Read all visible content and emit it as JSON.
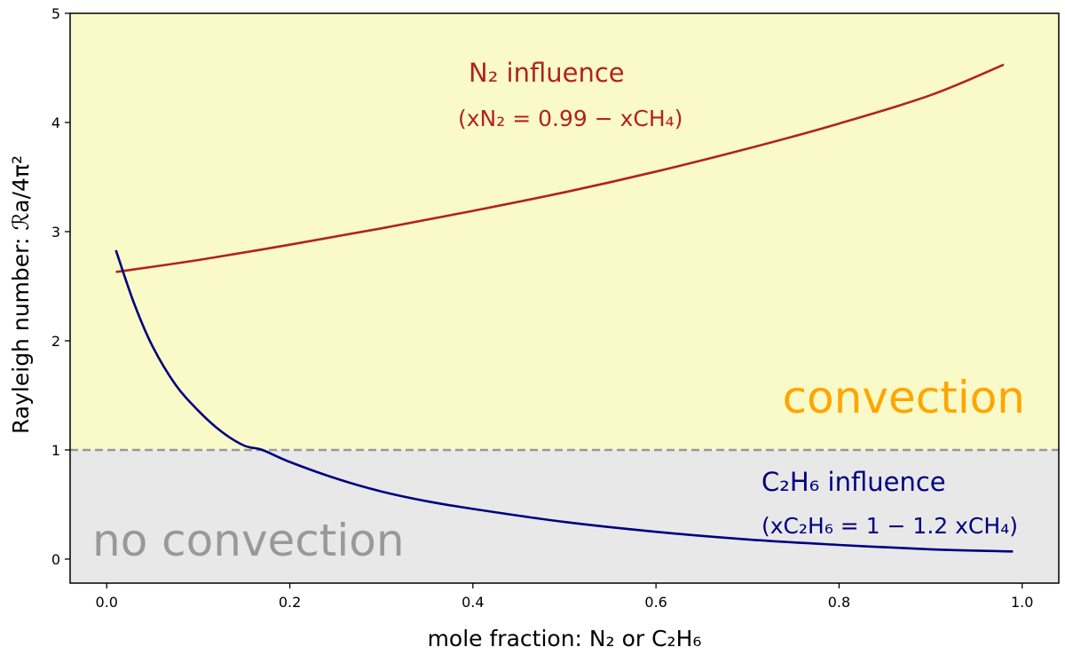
{
  "chart_data": {
    "type": "line",
    "xlabel": "mole fraction: N₂ or C₂H₆",
    "ylabel": "Rayleigh number: ℛa/4π²",
    "xlim": [
      -0.04,
      1.04
    ],
    "ylim": [
      -0.22,
      5.0
    ],
    "x_ticks": [
      "0.0",
      "0.2",
      "0.4",
      "0.6",
      "0.8",
      "1.0"
    ],
    "y_ticks": [
      "0",
      "1",
      "2",
      "3",
      "4",
      "5"
    ],
    "threshold": 1.0,
    "regions": {
      "above": {
        "label": "convection",
        "fill": "#fafac8",
        "text_color": "#ffa500"
      },
      "below": {
        "label": "no convection",
        "fill": "#e8e8e8",
        "text_color": "#999999"
      }
    },
    "series": [
      {
        "name": "N₂ influence",
        "formula": "(xN₂ = 0.99 − xCH₄)",
        "color": "#b22222",
        "x": [
          0.01,
          0.1,
          0.2,
          0.3,
          0.4,
          0.5,
          0.6,
          0.7,
          0.8,
          0.9,
          0.98
        ],
        "y": [
          2.63,
          2.74,
          2.88,
          3.03,
          3.19,
          3.36,
          3.55,
          3.76,
          3.99,
          4.25,
          4.53
        ]
      },
      {
        "name": "C₂H₆ influence",
        "formula": "(xC₂H₆ = 1 − 1.2 xCH₄)",
        "color": "#000080",
        "x": [
          0.01,
          0.03,
          0.05,
          0.075,
          0.1,
          0.125,
          0.15,
          0.17,
          0.2,
          0.25,
          0.3,
          0.35,
          0.4,
          0.5,
          0.6,
          0.7,
          0.8,
          0.9,
          0.99
        ],
        "y": [
          2.83,
          2.34,
          1.95,
          1.6,
          1.36,
          1.17,
          1.04,
          1.0,
          0.89,
          0.74,
          0.62,
          0.53,
          0.46,
          0.34,
          0.25,
          0.18,
          0.13,
          0.09,
          0.07
        ]
      }
    ]
  }
}
